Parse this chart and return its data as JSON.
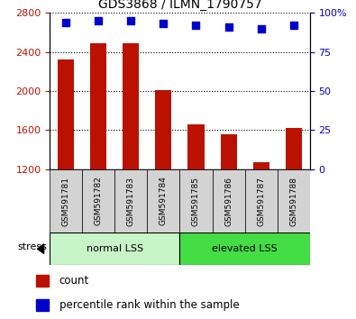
{
  "title": "GDS3868 / ILMN_1790757",
  "samples": [
    "GSM591781",
    "GSM591782",
    "GSM591783",
    "GSM591784",
    "GSM591785",
    "GSM591786",
    "GSM591787",
    "GSM591788"
  ],
  "counts": [
    2320,
    2490,
    2490,
    2005,
    1660,
    1555,
    1270,
    1620
  ],
  "percentiles": [
    94,
    95,
    95,
    93,
    92,
    91,
    90,
    92
  ],
  "groups": [
    {
      "label": "normal LSS",
      "start": 0,
      "end": 4,
      "color_light": "#c8f5c8",
      "color_dark": "#44dd44"
    },
    {
      "label": "elevated LSS",
      "start": 4,
      "end": 8,
      "color_light": "#44dd44",
      "color_dark": "#44dd44"
    }
  ],
  "bar_color": "#bb1100",
  "dot_color": "#0000cc",
  "ylim_left": [
    1200,
    2800
  ],
  "ylim_right": [
    0,
    100
  ],
  "yticks_left": [
    1200,
    1600,
    2000,
    2400,
    2800
  ],
  "yticks_right": [
    0,
    25,
    50,
    75,
    100
  ],
  "sample_area_color": "#d3d3d3",
  "group_colors": [
    "#c8f5c8",
    "#44dd44"
  ]
}
